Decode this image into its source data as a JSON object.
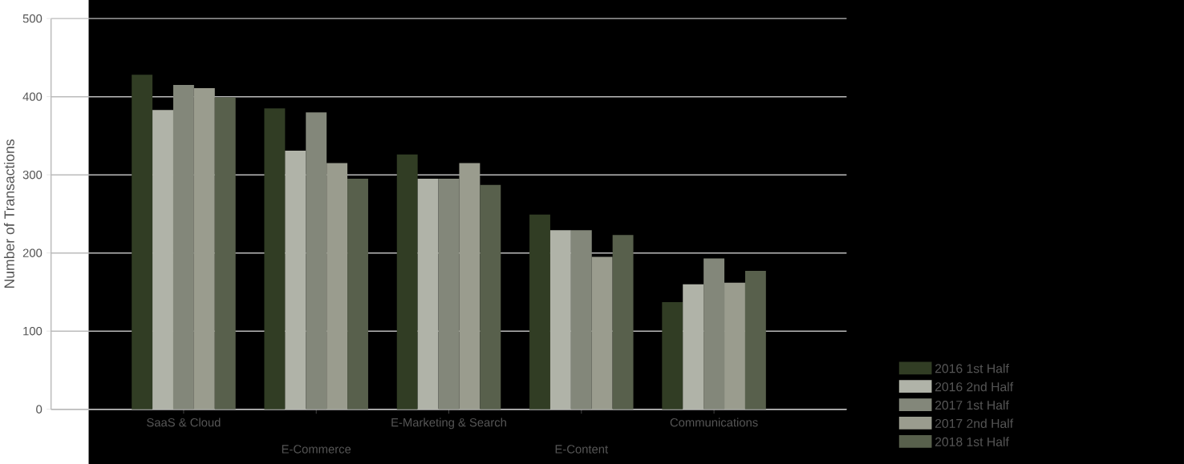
{
  "chart_data": {
    "type": "bar",
    "ylabel": "Number of Transactions",
    "categories": [
      "SaaS & Cloud",
      "E-Commerce",
      "E-Marketing & Search",
      "E-Content",
      "Communications"
    ],
    "series": [
      {
        "name": "2016 1st Half",
        "color": "#313d24",
        "values": [
          428,
          385,
          326,
          249,
          137
        ]
      },
      {
        "name": "2016 2nd Half",
        "color": "#b0b3a8",
        "values": [
          383,
          331,
          295,
          229,
          160
        ]
      },
      {
        "name": "2017 1st Half",
        "color": "#83877a",
        "values": [
          415,
          380,
          295,
          229,
          193
        ]
      },
      {
        "name": "2017 2nd Half",
        "color": "#9a9c8e",
        "values": [
          411,
          315,
          315,
          195,
          162
        ]
      },
      {
        "name": "2018 1st Half",
        "color": "#58604c",
        "values": [
          399,
          295,
          287,
          223,
          177
        ]
      }
    ],
    "ylim": [
      0,
      500
    ],
    "yticks": [
      0,
      100,
      200,
      300,
      400,
      500
    ],
    "grid": "y",
    "legend": "bottom right"
  }
}
